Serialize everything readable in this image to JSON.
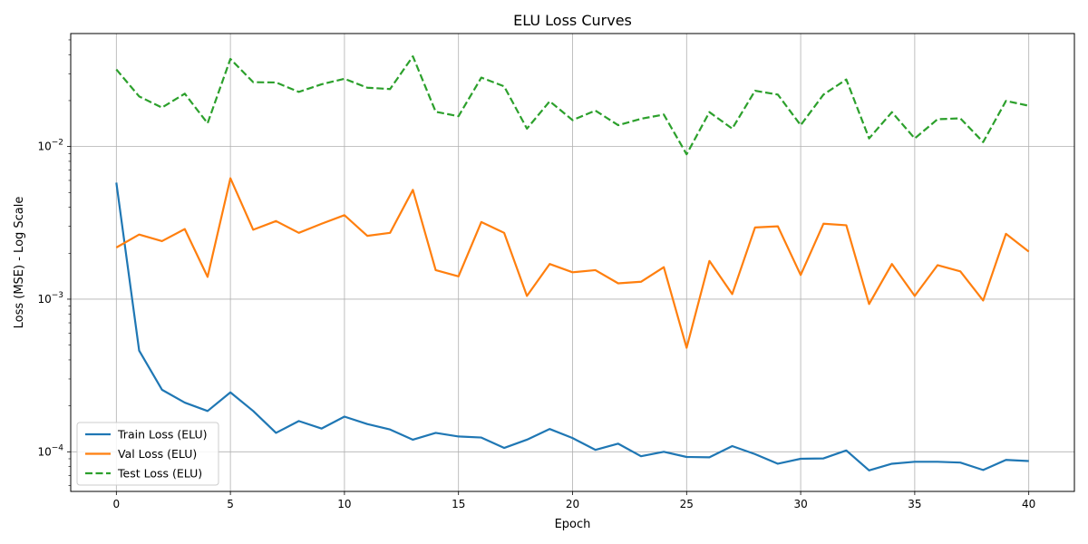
{
  "chart_data": {
    "type": "line",
    "title": "ELU Loss Curves",
    "xlabel": "Epoch",
    "ylabel": "Loss (MSE) - Log Scale",
    "yscale": "log",
    "xlim": [
      -2,
      42
    ],
    "ylim": [
      5.5e-05,
      0.055
    ],
    "grid": true,
    "legend_position": "lower-left",
    "x_ticks": [
      0,
      5,
      10,
      15,
      20,
      25,
      30,
      35,
      40
    ],
    "x_tick_labels": [
      "0",
      "5",
      "10",
      "15",
      "20",
      "25",
      "30",
      "35",
      "40"
    ],
    "y_ticks": [
      0.0001,
      0.001,
      0.01
    ],
    "y_tick_labels": [
      {
        "base": "10",
        "exp": "−4"
      },
      {
        "base": "10",
        "exp": "−3"
      },
      {
        "base": "10",
        "exp": "−2"
      }
    ],
    "x": [
      0,
      1,
      2,
      3,
      4,
      5,
      6,
      7,
      8,
      9,
      10,
      11,
      12,
      13,
      14,
      15,
      16,
      17,
      18,
      19,
      20,
      21,
      22,
      23,
      24,
      25,
      26,
      27,
      28,
      29,
      30,
      31,
      32,
      33,
      34,
      35,
      36,
      37,
      38,
      39,
      40
    ],
    "series": [
      {
        "name": "Train Loss (ELU)",
        "color": "#1f77b4",
        "dash": "solid",
        "values": [
          0.0058,
          0.00046,
          0.000255,
          0.00021,
          0.000185,
          0.000245,
          0.000185,
          0.000133,
          0.000159,
          0.000142,
          0.00017,
          0.000152,
          0.00014,
          0.00012,
          0.000133,
          0.000126,
          0.000124,
          0.000106,
          0.00012,
          0.000141,
          0.000123,
          0.000103,
          0.000113,
          9.35e-05,
          0.0001,
          9.25e-05,
          9.2e-05,
          0.000109,
          9.65e-05,
          8.35e-05,
          9e-05,
          9.05e-05,
          0.000102,
          7.55e-05,
          8.35e-05,
          8.6e-05,
          8.6e-05,
          8.5e-05,
          7.6e-05,
          8.85e-05,
          8.7e-05
        ]
      },
      {
        "name": "Val Loss (ELU)",
        "color": "#ff7f0e",
        "dash": "solid",
        "values": [
          0.00218,
          0.00265,
          0.0024,
          0.00288,
          0.0014,
          0.0062,
          0.00285,
          0.00325,
          0.00272,
          0.00312,
          0.00355,
          0.0026,
          0.00272,
          0.0052,
          0.00155,
          0.00141,
          0.0032,
          0.00272,
          0.00105,
          0.0017,
          0.0015,
          0.00155,
          0.00127,
          0.0013,
          0.00162,
          0.00048,
          0.00178,
          0.00108,
          0.00295,
          0.003,
          0.00144,
          0.00312,
          0.00305,
          0.00093,
          0.0017,
          0.00105,
          0.00167,
          0.00152,
          0.00098,
          0.00268,
          0.00205
        ]
      },
      {
        "name": "Test Loss (ELU)",
        "color": "#2ca02c",
        "dash": "dashed",
        "values": [
          0.032,
          0.0213,
          0.018,
          0.0222,
          0.0142,
          0.0375,
          0.0264,
          0.0263,
          0.0228,
          0.0256,
          0.0278,
          0.0243,
          0.0238,
          0.039,
          0.0169,
          0.0158,
          0.0283,
          0.0248,
          0.0131,
          0.0198,
          0.0149,
          0.0172,
          0.0138,
          0.0152,
          0.0162,
          0.0089,
          0.0168,
          0.0131,
          0.0232,
          0.0219,
          0.0138,
          0.0219,
          0.0275,
          0.0113,
          0.0168,
          0.0113,
          0.0151,
          0.0153,
          0.0107,
          0.0199,
          0.0185
        ]
      }
    ]
  }
}
